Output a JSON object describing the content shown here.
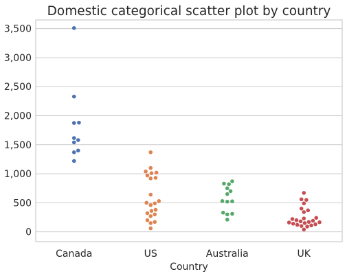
{
  "chart_data": {
    "type": "scatter",
    "title": "Domestic categorical scatter plot by country",
    "xlabel": "Country",
    "ylabel": "",
    "categories": [
      "Canada",
      "US",
      "Australia",
      "UK"
    ],
    "ylim": [
      -170,
      3650
    ],
    "y_ticks": [
      0,
      500,
      1000,
      1500,
      2000,
      2500,
      3000,
      3500
    ],
    "y_tick_labels": [
      "0",
      "500",
      "1,000",
      "1,500",
      "2,000",
      "2,500",
      "3,000",
      "3,500"
    ],
    "grid": true,
    "legend": "none",
    "series": [
      {
        "category": "Canada",
        "color": "#4c72b0",
        "values": [
          3510,
          2330,
          1880,
          1875,
          1615,
          1580,
          1540,
          1400,
          1370,
          1220
        ]
      },
      {
        "category": "US",
        "color": "#dd8452",
        "values": [
          1370,
          1100,
          1040,
          1020,
          1010,
          970,
          930,
          920,
          640,
          530,
          500,
          490,
          460,
          380,
          360,
          320,
          300,
          270,
          200,
          170,
          150,
          60
        ]
      },
      {
        "category": "Australia",
        "color": "#55a868",
        "values": [
          870,
          830,
          820,
          750,
          700,
          650,
          530,
          525,
          520,
          330,
          310,
          300,
          210
        ]
      },
      {
        "category": "UK",
        "color": "#c44e52",
        "values": [
          670,
          560,
          550,
          490,
          400,
          370,
          340,
          240,
          230,
          220,
          200,
          190,
          180,
          170,
          165,
          160,
          150,
          140,
          130,
          120,
          110,
          100,
          90,
          40
        ]
      }
    ]
  }
}
